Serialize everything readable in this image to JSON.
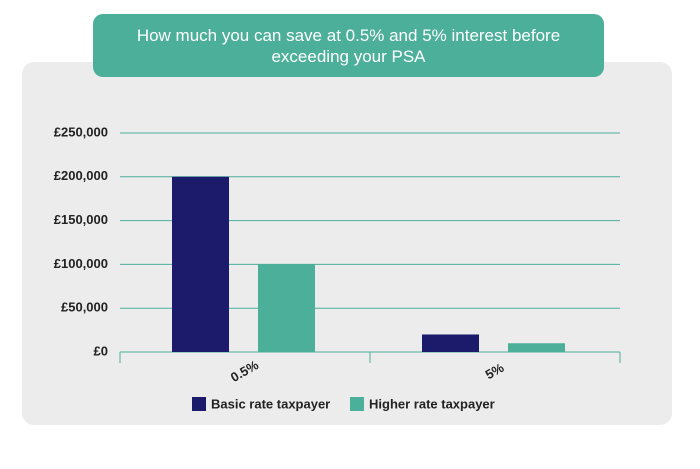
{
  "chart_data": {
    "type": "bar",
    "title": "How much you can save at 0.5% and 5% interest before exceeding your PSA",
    "categories": [
      "0.5%",
      "5%"
    ],
    "series": [
      {
        "name": "Basic rate taxpayer",
        "color": "#1c1a6b",
        "values": [
          200000,
          20000
        ]
      },
      {
        "name": "Higher rate taxpayer",
        "color": "#4caf9a",
        "values": [
          100000,
          10000
        ]
      }
    ],
    "ylim": [
      0,
      250000
    ],
    "yticks": [
      {
        "value": 0,
        "label": "£0"
      },
      {
        "value": 50000,
        "label": "£50,000"
      },
      {
        "value": 100000,
        "label": "£100,000"
      },
      {
        "value": 150000,
        "label": "£150,000"
      },
      {
        "value": 200000,
        "label": "£200,000"
      },
      {
        "value": 250000,
        "label": "£250,000"
      }
    ],
    "grid": true,
    "grid_color": "#4caf9a",
    "legend": "bottom"
  }
}
